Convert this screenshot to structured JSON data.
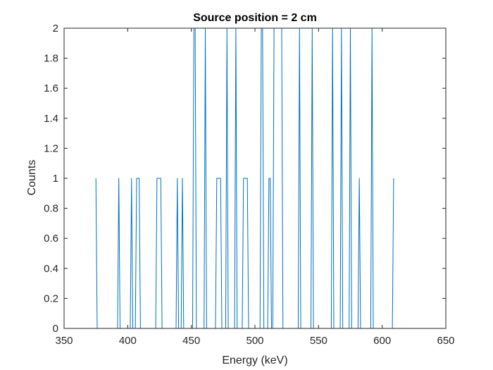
{
  "chart_data": {
    "type": "line",
    "title": "Source position = 2 cm",
    "xlabel": "Energy (keV)",
    "ylabel": "Counts",
    "xlim": [
      350,
      650
    ],
    "ylim": [
      0,
      2
    ],
    "xticks": [
      "350",
      "400",
      "450",
      "500",
      "550",
      "600",
      "650"
    ],
    "yticks": [
      "0",
      "0.2",
      "0.4",
      "0.6",
      "0.8",
      "1",
      "1.2",
      "1.4",
      "1.6",
      "1.8",
      "2"
    ],
    "grid": false,
    "series": [
      {
        "color": "#0072BD",
        "x": [
          375,
          376,
          377,
          378,
          379,
          380,
          381,
          382,
          383,
          384,
          385,
          386,
          387,
          388,
          389,
          390,
          391,
          392,
          393,
          394,
          395,
          396,
          397,
          398,
          399,
          400,
          401,
          402,
          403,
          404,
          405,
          406,
          407,
          408,
          409,
          410,
          411,
          412,
          413,
          414,
          415,
          416,
          417,
          418,
          419,
          420,
          421,
          422,
          423,
          424,
          425,
          426,
          427,
          428,
          429,
          430,
          431,
          432,
          433,
          434,
          435,
          436,
          437,
          438,
          439,
          440,
          441,
          442,
          443,
          444,
          445,
          446,
          447,
          448,
          449,
          450,
          451,
          452,
          453,
          454,
          455,
          456,
          457,
          458,
          459,
          460,
          461,
          462,
          463,
          464,
          465,
          466,
          467,
          468,
          469,
          470,
          471,
          472,
          473,
          474,
          475,
          476,
          477,
          478,
          479,
          480,
          481,
          482,
          483,
          484,
          485,
          486,
          487,
          488,
          489,
          490,
          491,
          492,
          493,
          494,
          495,
          496,
          497,
          498,
          499,
          500,
          501,
          502,
          503,
          504,
          505,
          506,
          507,
          508,
          509,
          510,
          511,
          512,
          513,
          514,
          515,
          516,
          517,
          518,
          519,
          520,
          521,
          522,
          523,
          524,
          525,
          526,
          527,
          528,
          529,
          530,
          531,
          532,
          533,
          534,
          535,
          536,
          537,
          538,
          539,
          540,
          541,
          542,
          543,
          544,
          545,
          546,
          547,
          548,
          549,
          550,
          551,
          552,
          553,
          554,
          555,
          556,
          557,
          558,
          559,
          560,
          561,
          562,
          563,
          564,
          565,
          566,
          567,
          568,
          569,
          570,
          571,
          572,
          573,
          574,
          575,
          576,
          577,
          578,
          579,
          580,
          581,
          582,
          583,
          584,
          585,
          586,
          587,
          588,
          589,
          590,
          591,
          592,
          593,
          594,
          595,
          596,
          597,
          598,
          599,
          600,
          601,
          602,
          603,
          604,
          605,
          606,
          607,
          608,
          609
        ],
        "y": [
          1,
          0,
          0,
          0,
          0,
          0,
          0,
          0,
          0,
          0,
          0,
          0,
          0,
          0,
          0,
          0,
          0,
          0,
          1,
          0,
          0,
          0,
          0,
          0,
          0,
          0,
          0,
          0,
          1,
          0,
          0,
          0,
          1,
          1,
          1,
          0,
          0,
          0,
          0,
          0,
          0,
          0,
          0,
          0,
          0,
          0,
          0,
          0,
          1,
          1,
          1,
          1,
          0,
          0,
          0,
          0,
          0,
          0,
          0,
          0,
          0,
          0,
          0,
          0,
          1,
          0,
          0,
          0,
          1,
          0,
          0,
          0,
          0,
          0,
          0,
          0,
          0,
          2,
          2,
          0,
          0,
          0,
          0,
          0,
          0,
          0,
          2,
          0,
          0,
          0,
          0,
          0,
          0,
          0,
          0,
          1,
          1,
          1,
          1,
          0,
          0,
          0,
          0,
          2,
          0,
          0,
          0,
          0,
          0,
          0,
          2,
          0,
          0,
          0,
          0,
          0,
          1,
          1,
          1,
          1,
          0,
          0,
          0,
          0,
          0,
          0,
          0,
          0,
          0,
          0,
          2,
          2,
          0,
          0,
          0,
          0,
          1,
          1,
          0,
          0,
          2,
          2,
          2,
          2,
          2,
          2,
          2,
          0,
          0,
          0,
          0,
          0,
          0,
          0,
          0,
          0,
          0,
          0,
          0,
          0,
          2,
          0,
          0,
          0,
          0,
          0,
          0,
          0,
          0,
          0,
          2,
          0,
          0,
          0,
          0,
          0,
          0,
          0,
          0,
          0,
          0,
          0,
          0,
          0,
          0,
          0,
          2,
          0,
          0,
          0,
          0,
          0,
          0,
          2,
          0,
          0,
          0,
          0,
          0,
          0,
          2,
          0,
          0,
          0,
          0,
          0,
          0,
          1,
          0,
          0,
          0,
          0,
          0,
          0,
          0,
          0,
          0,
          2,
          0,
          0,
          0,
          0,
          0,
          0,
          0,
          0,
          0,
          0,
          0,
          0,
          0,
          0,
          0,
          0,
          1
        ]
      }
    ]
  }
}
